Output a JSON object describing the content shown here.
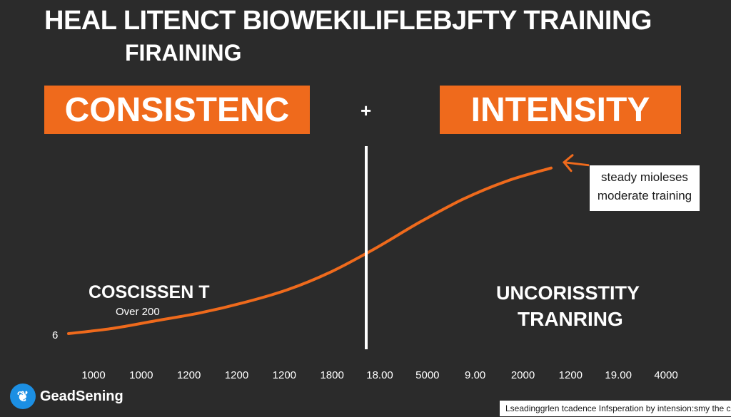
{
  "header": {
    "title_line1": "HEAL LITENCT BIOWEKILIFLEBJFTY TRAINING",
    "title_line2": "FIRAINING"
  },
  "comparison": {
    "left_tag": "CONSISTENC",
    "plus_sign": "+",
    "right_tag": "INTENSITY"
  },
  "callout": {
    "line1": "steady mioleses",
    "line2": "moderate training"
  },
  "left_panel": {
    "label": "COSCISSEN T",
    "sublabel": "Over 200",
    "start_value": "6"
  },
  "right_panel": {
    "label_line1": "UNCORISSTITY",
    "label_line2": "TRANRING"
  },
  "chart_data": {
    "type": "line",
    "title": "HEAL LITENCT BIOWEKILIFLEBJFTY TRAINING",
    "x_tick_labels": [
      "1000",
      "1000",
      "1200",
      "1200",
      "1200",
      "1800",
      "18.00",
      "5000",
      "9.00",
      "2000",
      "1200",
      "19.00",
      "4000"
    ],
    "series": [
      {
        "color": "#ef6a1c",
        "x": [
          0,
          1,
          2,
          3,
          4,
          5,
          6,
          7,
          8,
          9,
          10,
          11
        ],
        "values": [
          0,
          2,
          5,
          8,
          12,
          17,
          24,
          33,
          43,
          52,
          59,
          64
        ]
      }
    ],
    "ylim": [
      0,
      100
    ],
    "xlim": [
      0,
      12
    ],
    "grid": false
  },
  "branding": {
    "logo_name": "GeadSening",
    "logo_icon": "feather-icon"
  },
  "footer": {
    "text": "Lseadinggrlen tcadence Infsperation by intension:smy the com."
  },
  "colors": {
    "accent": "#ef6a1c",
    "background": "#2b2b2b",
    "text": "#ffffff"
  }
}
